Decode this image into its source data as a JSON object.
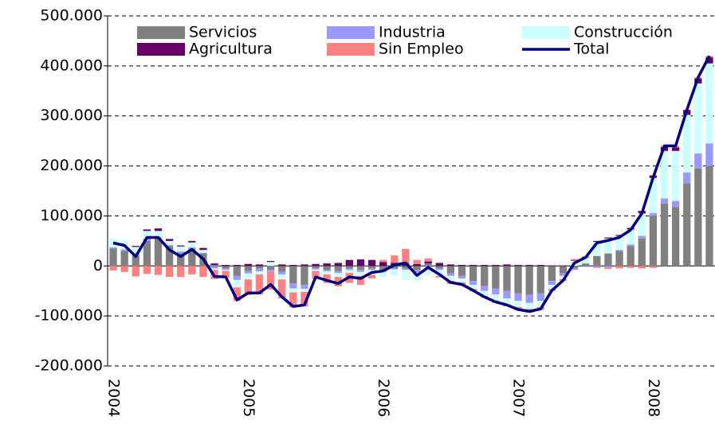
{
  "chart_data": {
    "type": "bar",
    "stacked": true,
    "categories": [
      "2004",
      null,
      null,
      null,
      null,
      null,
      null,
      null,
      null,
      null,
      null,
      null,
      "2005",
      null,
      null,
      null,
      null,
      null,
      null,
      null,
      null,
      null,
      null,
      null,
      "2006",
      null,
      null,
      null,
      null,
      null,
      null,
      null,
      null,
      null,
      null,
      null,
      "2007",
      null,
      null,
      null,
      null,
      null,
      null,
      null,
      null,
      null,
      null,
      null,
      "2008",
      null,
      null,
      null,
      null,
      null
    ],
    "ylim": [
      -200000,
      500000
    ],
    "yticks": [
      {
        "value": -200000,
        "label": "-200.000"
      },
      {
        "value": -100000,
        "label": "-100.000"
      },
      0,
      {
        "value": 100000,
        "label": "100.000"
      },
      {
        "value": 200000,
        "label": "200.000"
      },
      {
        "value": 300000,
        "label": "300.000"
      },
      {
        "value": 400000,
        "label": "400.000"
      },
      {
        "value": 500000,
        "label": "500.000"
      }
    ],
    "grid": true,
    "legend": "top",
    "series": [
      {
        "name": "Servicios",
        "color": "#808080",
        "values": [
          35000,
          30000,
          20000,
          50000,
          55000,
          40000,
          25000,
          35000,
          25000,
          2000,
          -5000,
          -20000,
          -10000,
          -5000,
          -8000,
          -12000,
          -35000,
          -38000,
          -5000,
          -8000,
          -10000,
          -5000,
          -8000,
          -5000,
          -8000,
          -5000,
          -5000,
          -8000,
          5000,
          -5000,
          -15000,
          -20000,
          -30000,
          -40000,
          -45000,
          -50000,
          -55000,
          -58000,
          -55000,
          -30000,
          -15000,
          -5000,
          5000,
          20000,
          25000,
          30000,
          40000,
          55000,
          100000,
          125000,
          118000,
          165000,
          195000,
          200000
        ]
      },
      {
        "name": "Industria",
        "color": "#9999ff",
        "values": [
          2000,
          3000,
          3000,
          5000,
          3000,
          2000,
          4000,
          2000,
          1000,
          -5000,
          -3000,
          -8000,
          -5000,
          -6000,
          -4000,
          -5000,
          -10000,
          -8000,
          -2000,
          -3000,
          -4000,
          -3000,
          -4000,
          -3000,
          -4000,
          -2000,
          -3000,
          -5000,
          -3000,
          -3000,
          -5000,
          -5000,
          -8000,
          -10000,
          -12000,
          -15000,
          -15000,
          -16000,
          -15000,
          -8000,
          -5000,
          -3000,
          -2000,
          -2000,
          -3000,
          2000,
          3000,
          5000,
          6000,
          10000,
          12000,
          22000,
          30000,
          45000
        ]
      },
      {
        "name": "Construcción",
        "color": "#ccffff",
        "values": [
          18000,
          20000,
          15000,
          15000,
          12000,
          8000,
          10000,
          10000,
          6000,
          -3000,
          -2000,
          -15000,
          -12000,
          -6000,
          8000,
          -10000,
          -8000,
          -6000,
          -3000,
          -6000,
          -8000,
          -6000,
          -8000,
          -10000,
          -10000,
          -12000,
          -20000,
          -18000,
          -15000,
          -12000,
          -10000,
          -8000,
          -8000,
          -10000,
          -12000,
          -12000,
          -12000,
          -12000,
          -12000,
          -8000,
          -6000,
          10000,
          12000,
          28000,
          30000,
          28000,
          30000,
          45000,
          70000,
          95000,
          100000,
          115000,
          140000,
          160000
        ]
      },
      {
        "name": "Agricultura",
        "color": "#660066",
        "values": [
          0,
          0,
          2000,
          3000,
          5000,
          4000,
          2000,
          3000,
          4000,
          3000,
          2000,
          2000,
          4000,
          3000,
          2000,
          3000,
          2000,
          3000,
          4000,
          5000,
          6000,
          12000,
          13000,
          12000,
          8000,
          6000,
          5000,
          4000,
          4000,
          6000,
          3000,
          2000,
          2000,
          2000,
          2000,
          3000,
          2000,
          2000,
          2000,
          1000,
          1000,
          1000,
          1000,
          2000,
          2000,
          2000,
          3000,
          5000,
          5000,
          8000,
          7000,
          10000,
          10000,
          12000
        ]
      },
      {
        "name": "Sin Empleo",
        "color": "#ff8080",
        "values": [
          -9000,
          -12000,
          -21000,
          -16000,
          -18000,
          -22000,
          -22000,
          -17000,
          -22000,
          -18000,
          -14000,
          -27000,
          -31000,
          -40000,
          -35000,
          -38000,
          -30000,
          -29000,
          -16000,
          -17000,
          -19000,
          -20000,
          -18000,
          -7000,
          4000,
          15000,
          29000,
          8000,
          6000,
          -3000,
          -6000,
          -6000,
          -5000,
          -4000,
          -5000,
          -4000,
          -7000,
          -7000,
          -6000,
          -4000,
          -4000,
          3000,
          1000,
          -2000,
          -3000,
          -5000,
          -4000,
          -5000,
          -4000,
          2000,
          3000,
          0,
          2000,
          3000
        ]
      },
      {
        "name": "Total",
        "type": "line",
        "color": "#000080",
        "values": [
          46000,
          41000,
          19000,
          57000,
          57000,
          32000,
          19000,
          33000,
          14000,
          -21000,
          -22000,
          -68000,
          -54000,
          -54000,
          -37000,
          -62000,
          -81000,
          -78000,
          -22000,
          -29000,
          -35000,
          -22000,
          -25000,
          -13000,
          -10000,
          2000,
          6000,
          -19000,
          -3000,
          -17000,
          -33000,
          -37000,
          -49000,
          -62000,
          -72000,
          -78000,
          -87000,
          -91000,
          -86000,
          -49000,
          -29000,
          6000,
          17000,
          46000,
          51000,
          57000,
          72000,
          105000,
          177000,
          240000,
          240000,
          312000,
          377000,
          420000
        ]
      }
    ]
  }
}
